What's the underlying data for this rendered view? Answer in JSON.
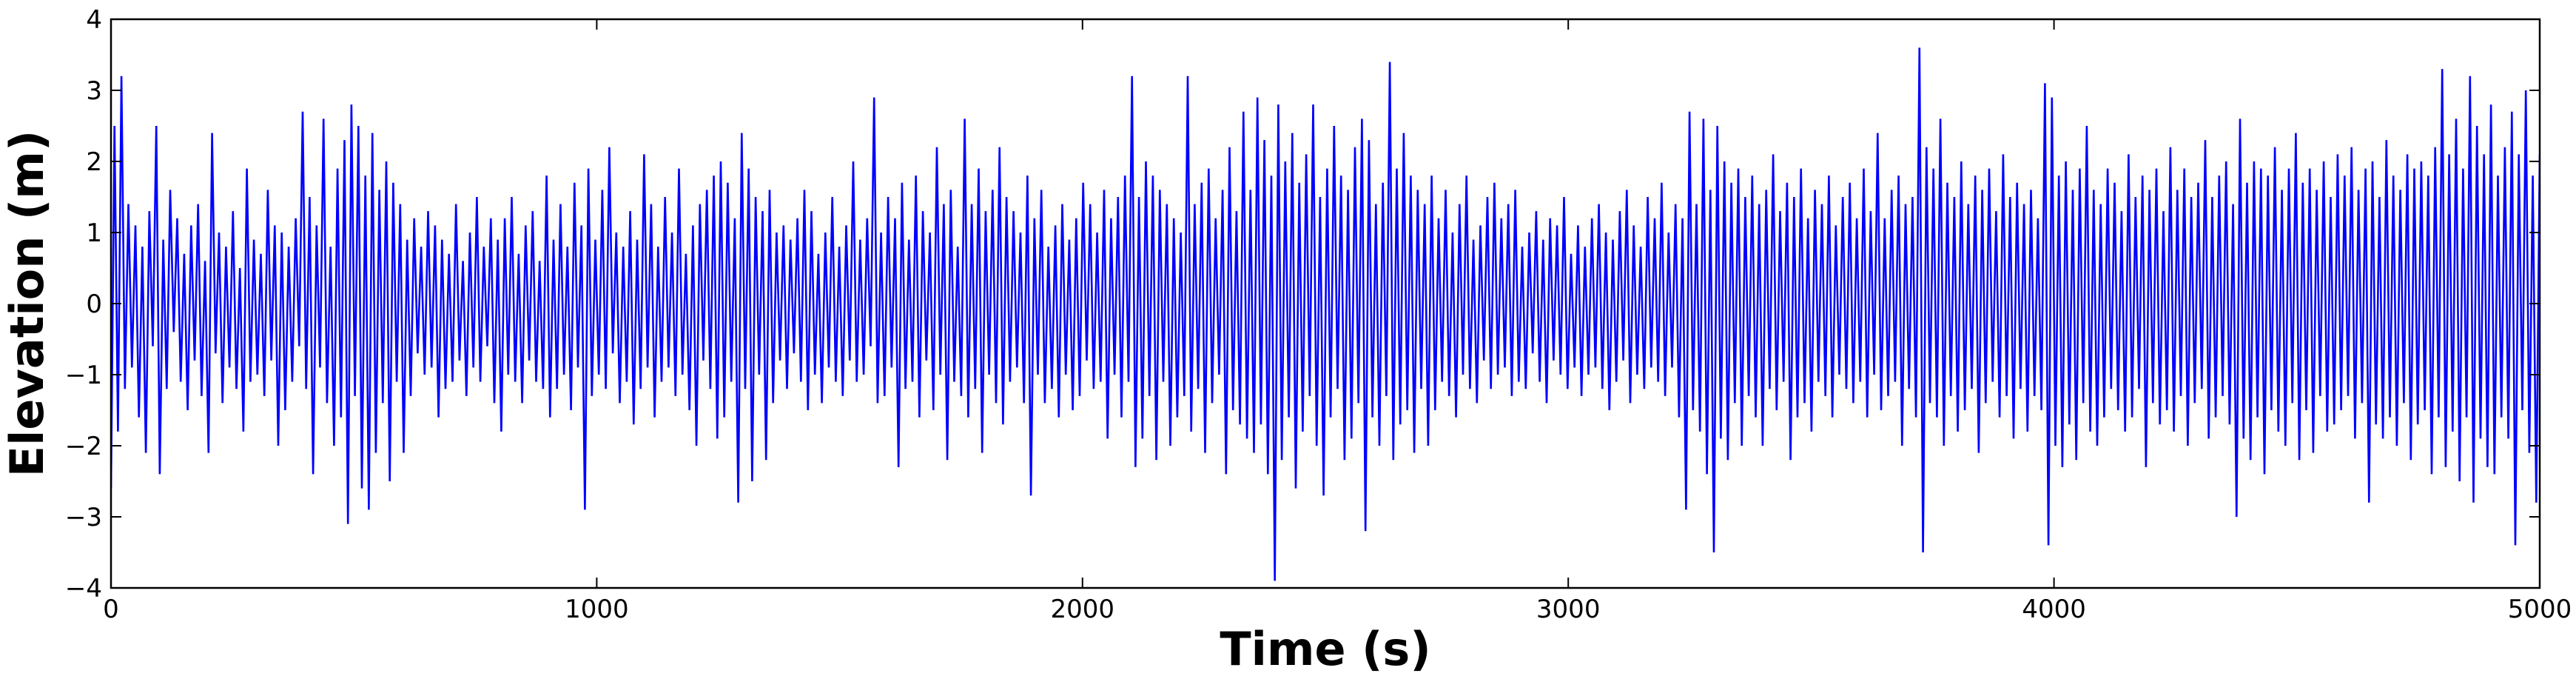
{
  "chart_data": {
    "type": "line",
    "title": "",
    "xlabel": "Time (s)",
    "ylabel": "Elevation (m)",
    "xlim": [
      0,
      5000
    ],
    "ylim": [
      -4,
      4
    ],
    "x_ticks": [
      0,
      1000,
      2000,
      3000,
      4000,
      5000
    ],
    "x_tick_labels": [
      "0",
      "1000",
      "2000",
      "3000",
      "4000",
      "5000"
    ],
    "y_ticks": [
      4,
      3,
      2,
      1,
      0,
      -1,
      -2,
      -3,
      -4
    ],
    "y_tick_labels": [
      "4",
      "3",
      "2",
      "1",
      "0",
      "−1",
      "−2",
      "−3",
      "−4"
    ],
    "grid": false,
    "legend": "none",
    "series": [
      {
        "color": "#0000ff",
        "sample_interval_s": 5,
        "x_start": 0,
        "x_end": 5000,
        "values": [
          -2.6,
          2.5,
          -1.8,
          3.2,
          -1.2,
          1.4,
          -0.9,
          1.1,
          -1.6,
          0.8,
          -2.1,
          1.3,
          -0.6,
          2.5,
          -2.4,
          0.9,
          -1.2,
          1.6,
          -0.4,
          1.2,
          -1.1,
          0.7,
          -1.5,
          1.1,
          -0.8,
          1.4,
          -1.3,
          0.6,
          -2.1,
          2.4,
          -0.7,
          1.0,
          -1.4,
          0.8,
          -0.9,
          1.3,
          -1.2,
          0.5,
          -1.8,
          1.9,
          -1.1,
          0.9,
          -1.0,
          0.7,
          -1.3,
          1.6,
          -0.8,
          1.1,
          -2.0,
          1.0,
          -1.5,
          0.8,
          -1.1,
          1.2,
          -0.6,
          2.7,
          -1.2,
          1.5,
          -2.4,
          1.1,
          -0.9,
          2.6,
          -1.4,
          0.8,
          -2.0,
          1.9,
          -1.6,
          2.3,
          -3.1,
          2.8,
          -1.3,
          2.5,
          -2.6,
          1.8,
          -2.9,
          2.4,
          -2.1,
          1.6,
          -1.4,
          2.0,
          -2.5,
          1.7,
          -1.1,
          1.4,
          -2.1,
          0.9,
          -1.3,
          1.2,
          -0.7,
          0.8,
          -1.0,
          1.3,
          -0.9,
          1.1,
          -1.6,
          0.9,
          -1.2,
          0.7,
          -1.1,
          1.4,
          -0.8,
          0.6,
          -1.3,
          1.0,
          -0.9,
          1.5,
          -1.1,
          0.8,
          -0.6,
          1.2,
          -1.4,
          0.9,
          -1.8,
          1.2,
          -1.0,
          1.5,
          -1.1,
          0.7,
          -1.4,
          1.1,
          -0.8,
          1.3,
          -1.1,
          0.6,
          -1.2,
          1.8,
          -1.6,
          0.9,
          -1.2,
          1.4,
          -1.0,
          0.8,
          -1.5,
          1.7,
          -0.9,
          1.1,
          -2.9,
          1.9,
          -1.3,
          0.9,
          -1.0,
          1.6,
          -1.2,
          2.2,
          -0.7,
          1.0,
          -1.4,
          0.8,
          -1.1,
          1.3,
          -1.7,
          0.9,
          -1.2,
          2.1,
          -0.9,
          1.4,
          -1.6,
          0.8,
          -1.1,
          1.5,
          -0.9,
          1.0,
          -1.3,
          1.9,
          -1.0,
          0.7,
          -1.5,
          1.1,
          -2.0,
          1.4,
          -0.8,
          1.6,
          -1.2,
          1.8,
          -1.9,
          2.0,
          -1.6,
          1.7,
          -1.1,
          1.2,
          -2.8,
          2.4,
          -1.2,
          1.9,
          -2.5,
          1.5,
          -1.0,
          1.3,
          -2.2,
          1.6,
          -1.4,
          1.0,
          -0.8,
          1.1,
          -1.2,
          0.9,
          -0.7,
          1.2,
          -1.1,
          1.6,
          -1.5,
          1.3,
          -1.0,
          0.7,
          -1.4,
          1.0,
          -0.9,
          1.5,
          -1.1,
          0.8,
          -1.3,
          1.1,
          -0.8,
          2.0,
          -1.1,
          0.9,
          -1.0,
          1.2,
          -0.6,
          2.9,
          -1.4,
          1.0,
          -1.3,
          1.5,
          -0.9,
          1.2,
          -2.3,
          1.7,
          -1.2,
          0.9,
          -1.1,
          1.8,
          -1.6,
          1.3,
          -0.8,
          1.0,
          -1.5,
          2.2,
          -1.0,
          1.4,
          -2.2,
          1.6,
          -1.1,
          0.8,
          -1.3,
          2.6,
          -1.6,
          1.4,
          -1.2,
          1.9,
          -2.1,
          1.3,
          -1.0,
          1.6,
          -1.4,
          2.2,
          -1.7,
          1.5,
          -1.1,
          1.3,
          -0.9,
          1.0,
          -1.4,
          1.8,
          -2.7,
          1.2,
          -1.0,
          1.6,
          -1.4,
          0.8,
          -1.2,
          1.1,
          -1.6,
          1.4,
          -1.0,
          0.9,
          -1.5,
          1.2,
          -1.3,
          1.7,
          -0.8,
          1.4,
          -1.2,
          1.0,
          -1.1,
          1.6,
          -1.9,
          1.2,
          -1.0,
          1.5,
          -1.6,
          1.8,
          -1.1,
          3.2,
          -2.3,
          1.5,
          -1.9,
          2.0,
          -1.3,
          1.8,
          -2.2,
          1.6,
          -1.1,
          1.4,
          -2.0,
          1.2,
          -1.6,
          1.0,
          -1.3,
          3.2,
          -1.8,
          1.4,
          -1.2,
          1.7,
          -2.1,
          1.9,
          -1.4,
          1.2,
          -1.0,
          1.6,
          -2.4,
          2.2,
          -1.5,
          1.3,
          -1.7,
          2.7,
          -1.9,
          1.6,
          -2.1,
          2.9,
          -1.7,
          2.3,
          -2.4,
          1.8,
          -3.9,
          2.8,
          -2.2,
          2.0,
          -1.6,
          2.4,
          -2.6,
          1.7,
          -1.8,
          2.1,
          -1.3,
          2.8,
          -2.0,
          1.5,
          -2.7,
          1.9,
          -1.6,
          2.5,
          -1.2,
          1.8,
          -2.2,
          1.6,
          -1.9,
          2.2,
          -1.4,
          2.6,
          -3.2,
          2.3,
          -1.6,
          1.4,
          -2.0,
          1.7,
          -1.3,
          3.4,
          -2.2,
          1.9,
          -1.7,
          2.4,
          -1.5,
          1.8,
          -2.1,
          1.6,
          -1.2,
          1.4,
          -2.0,
          1.8,
          -1.5,
          1.2,
          -1.1,
          1.6,
          -1.3,
          1.0,
          -1.6,
          1.4,
          -1.0,
          1.8,
          -1.2,
          0.9,
          -1.4,
          1.1,
          -0.8,
          1.5,
          -1.2,
          1.7,
          -1.0,
          1.2,
          -0.9,
          1.4,
          -1.3,
          1.6,
          -1.1,
          0.8,
          -1.2,
          1.0,
          -0.7,
          1.3,
          -1.1,
          0.9,
          -1.4,
          1.2,
          -0.8,
          1.1,
          -1.0,
          1.5,
          -1.2,
          0.7,
          -0.9,
          1.1,
          -1.3,
          0.8,
          -1.0,
          1.2,
          -0.9,
          1.4,
          -1.2,
          1.0,
          -1.5,
          0.9,
          -1.1,
          1.3,
          -0.8,
          1.6,
          -1.4,
          1.1,
          -1.0,
          0.8,
          -1.2,
          1.5,
          -0.9,
          1.2,
          -1.1,
          1.7,
          -1.3,
          1.0,
          -0.9,
          1.4,
          -1.6,
          1.2,
          -2.9,
          2.7,
          -1.5,
          1.4,
          -1.8,
          2.6,
          -2.4,
          1.6,
          -3.5,
          2.5,
          -1.9,
          2.0,
          -2.2,
          1.7,
          -1.4,
          1.9,
          -2.0,
          1.5,
          -1.3,
          1.8,
          -1.6,
          1.4,
          -2.0,
          1.6,
          -1.2,
          2.1,
          -1.5,
          1.3,
          -1.1,
          1.7,
          -2.2,
          1.5,
          -1.6,
          1.9,
          -1.4,
          1.2,
          -1.8,
          1.6,
          -1.1,
          1.4,
          -1.3,
          1.8,
          -1.6,
          1.1,
          -1.0,
          1.5,
          -1.2,
          1.7,
          -1.4,
          1.2,
          -1.1,
          1.9,
          -1.6,
          1.3,
          -1.0,
          2.4,
          -1.5,
          1.2,
          -1.3,
          1.6,
          -1.1,
          1.8,
          -2.0,
          1.4,
          -1.2,
          1.5,
          -1.6,
          3.6,
          -3.5,
          2.2,
          -1.4,
          1.9,
          -1.6,
          2.6,
          -2.0,
          1.7,
          -1.3,
          1.5,
          -1.8,
          2.0,
          -1.5,
          1.4,
          -1.2,
          1.8,
          -2.1,
          1.6,
          -1.4,
          1.9,
          -1.1,
          1.3,
          -1.6,
          2.1,
          -1.3,
          1.5,
          -1.9,
          1.7,
          -1.2,
          1.4,
          -1.8,
          1.6,
          -1.3,
          1.2,
          -1.5,
          3.1,
          -3.4,
          2.9,
          -2.0,
          1.8,
          -2.3,
          2.0,
          -1.7,
          1.6,
          -2.2,
          1.9,
          -1.4,
          2.5,
          -1.8,
          1.6,
          -2.0,
          1.4,
          -1.6,
          1.9,
          -1.2,
          1.7,
          -1.5,
          1.3,
          -1.8,
          2.1,
          -1.6,
          1.5,
          -1.2,
          1.8,
          -2.3,
          1.6,
          -1.4,
          1.9,
          -1.7,
          1.3,
          -1.5,
          2.2,
          -1.8,
          1.6,
          -1.3,
          1.9,
          -2.0,
          1.5,
          -1.4,
          1.7,
          -1.2,
          2.3,
          -1.9,
          1.5,
          -1.6,
          1.8,
          -1.3,
          2.0,
          -1.7,
          1.4,
          -3.0,
          2.6,
          -1.9,
          1.7,
          -2.2,
          2.0,
          -1.6,
          1.9,
          -2.4,
          1.8,
          -1.5,
          2.2,
          -1.8,
          1.6,
          -2.0,
          1.9,
          -1.4,
          2.4,
          -2.2,
          1.7,
          -1.5,
          1.9,
          -2.1,
          1.6,
          -1.3,
          2.0,
          -1.8,
          1.5,
          -1.7,
          2.1,
          -1.5,
          1.8,
          -1.3,
          2.2,
          -1.9,
          1.6,
          -1.4,
          1.9,
          -2.8,
          2.0,
          -1.7,
          1.5,
          -1.9,
          2.3,
          -1.6,
          1.8,
          -2.0,
          1.6,
          -1.4,
          2.1,
          -2.2,
          1.9,
          -1.7,
          2.0,
          -1.5,
          1.8,
          -2.4,
          2.2,
          -1.6,
          3.3,
          -2.3,
          2.1,
          -1.8,
          2.6,
          -2.5,
          1.9,
          -1.6,
          3.2,
          -2.8,
          2.5,
          -1.9,
          2.1,
          -2.3,
          2.8,
          -2.4,
          1.8,
          -1.6,
          2.2,
          -1.9,
          2.7,
          -3.4,
          2.1,
          -1.5,
          3.0,
          -2.1,
          1.8,
          -2.8,
          2.1
        ]
      }
    ]
  }
}
